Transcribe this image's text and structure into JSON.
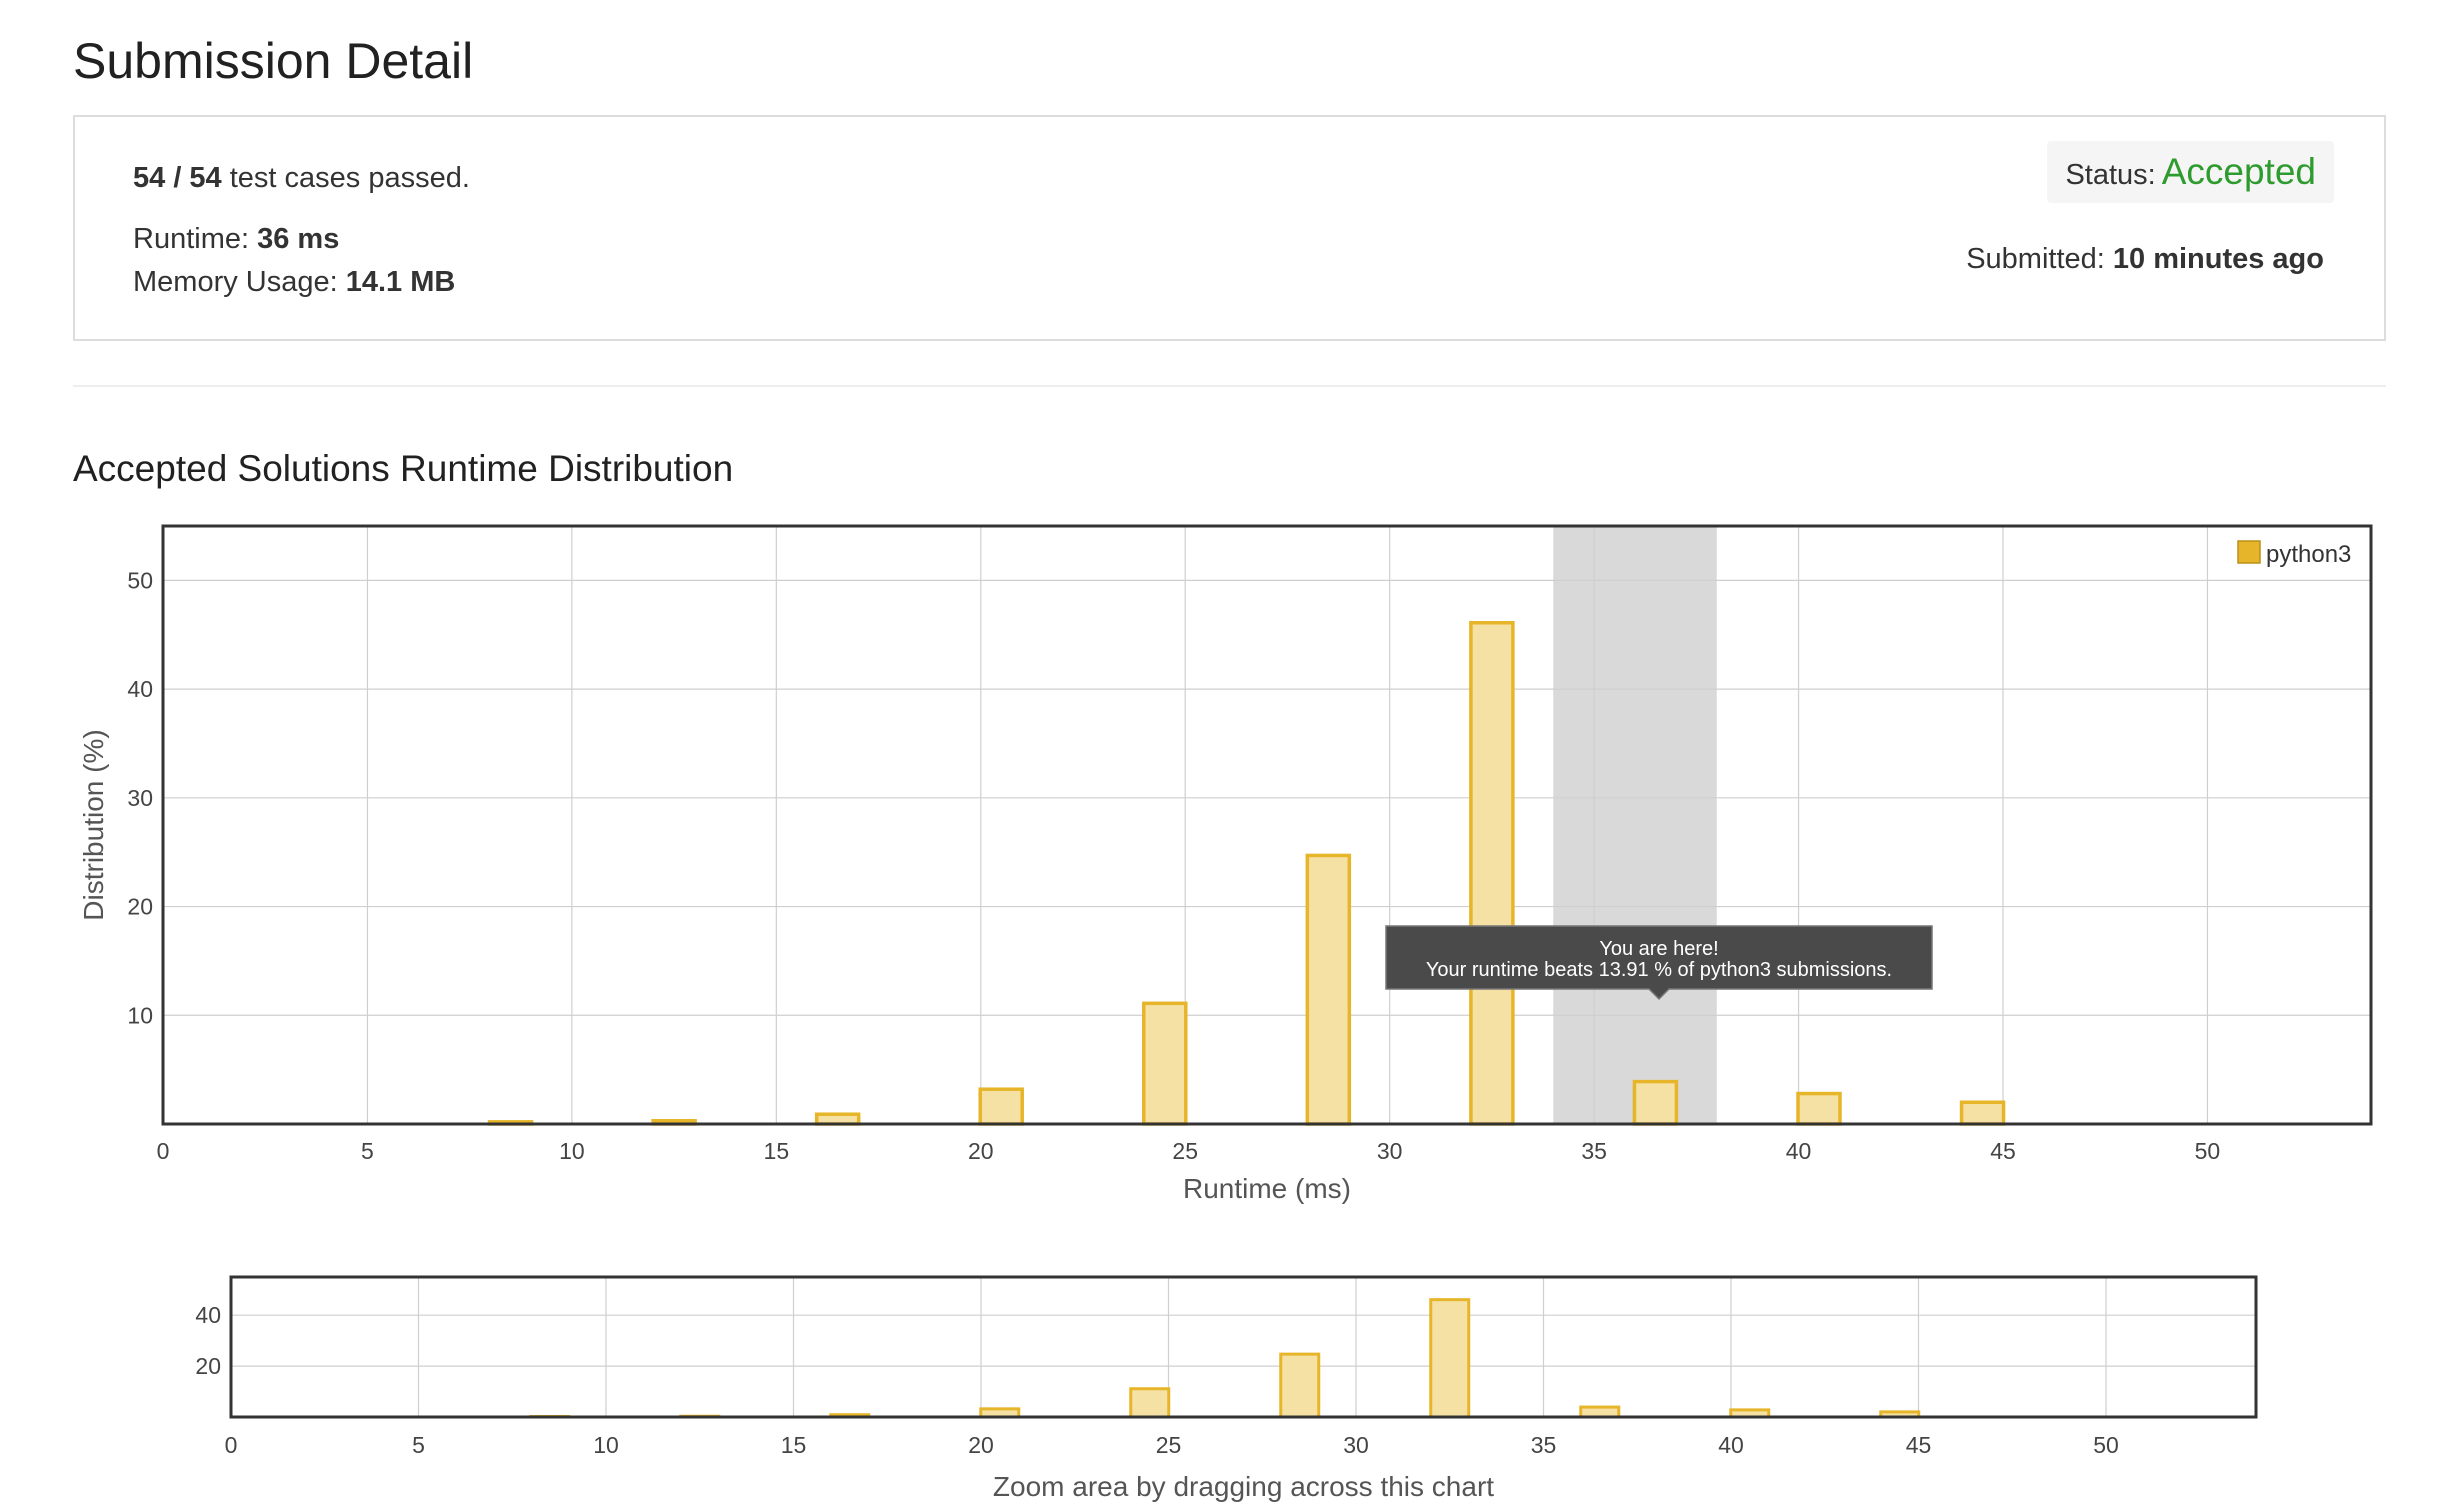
{
  "page_title": "Submission Detail",
  "detail": {
    "cases_passed": "54 / 54",
    "cases_suffix": " test cases passed.",
    "runtime_label": "Runtime: ",
    "runtime_value": "36 ms",
    "memory_label": "Memory Usage: ",
    "memory_value": "14.1 MB",
    "status_label": "Status:",
    "status_value": "Accepted",
    "submitted_label": "Submitted: ",
    "submitted_value": "10 minutes ago"
  },
  "colors": {
    "accepted": "#2e9b2e",
    "bar_fill": "#f5e1a4",
    "bar_stroke": "#e6b52a",
    "highlight": "#d9d9d9",
    "tooltip_bg": "#4a4a4a"
  },
  "section_title": "Accepted Solutions Runtime Distribution",
  "chart_data": [
    {
      "type": "bar",
      "xlabel": "Runtime (ms)",
      "ylabel": "Distribution (%)",
      "xlim": [
        0,
        54
      ],
      "ylim": [
        0,
        55
      ],
      "x_ticks": [
        0,
        5,
        10,
        15,
        20,
        25,
        30,
        35,
        40,
        45,
        50
      ],
      "y_ticks": [
        10,
        20,
        30,
        40,
        50
      ],
      "grid": true,
      "legend_position": "top-right",
      "series": [
        {
          "name": "python3",
          "x": [
            8.5,
            12.5,
            16.5,
            20.5,
            24.5,
            28.5,
            32.5,
            36.5,
            40.5,
            44.5
          ],
          "values": [
            0.2,
            0.3,
            0.9,
            3.2,
            11.1,
            24.7,
            46.1,
            3.9,
            2.8,
            2.0
          ]
        }
      ],
      "highlight_range": [
        34,
        38
      ],
      "annotation": {
        "line1": "You are here!",
        "line2": "Your runtime beats 13.91 % of python3 submissions."
      }
    },
    {
      "type": "bar",
      "xlabel": "Zoom area by dragging across this chart",
      "xlim": [
        0,
        54
      ],
      "ylim": [
        0,
        55
      ],
      "x_ticks": [
        0,
        5,
        10,
        15,
        20,
        25,
        30,
        35,
        40,
        45,
        50
      ],
      "y_ticks": [
        20,
        40
      ],
      "grid": true,
      "series": [
        {
          "name": "python3",
          "x": [
            8.5,
            12.5,
            16.5,
            20.5,
            24.5,
            28.5,
            32.5,
            36.5,
            40.5,
            44.5
          ],
          "values": [
            0.2,
            0.3,
            0.9,
            3.2,
            11.1,
            24.7,
            46.1,
            3.9,
            2.8,
            2.0
          ]
        }
      ]
    }
  ]
}
